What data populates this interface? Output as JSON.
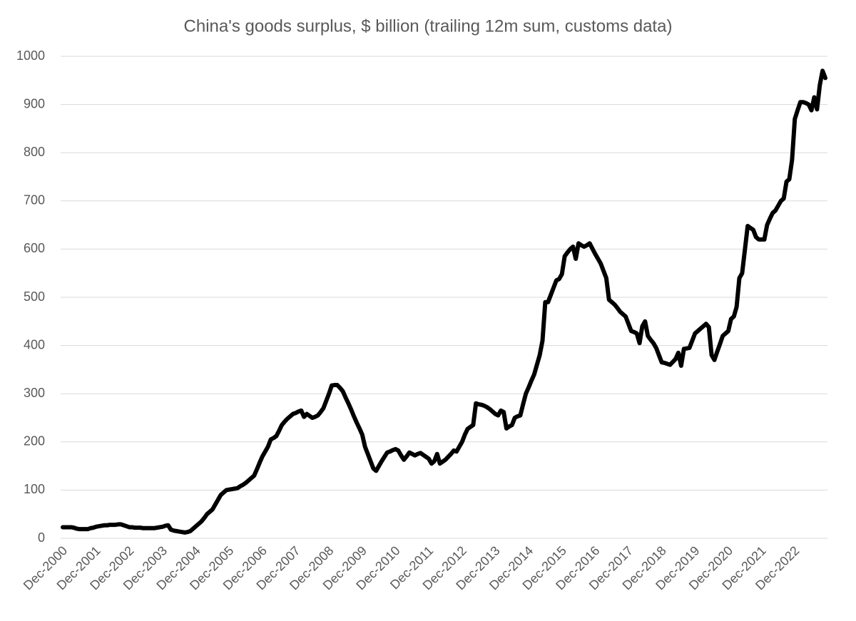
{
  "chart_data": {
    "type": "line",
    "title": "China's goods surplus, $ billion (trailing 12m sum, customs data)",
    "categories": [
      "Dec-2000",
      null,
      null,
      null,
      null,
      null,
      null,
      null,
      null,
      null,
      null,
      null,
      "Dec-2001",
      null,
      null,
      null,
      null,
      null,
      null,
      null,
      null,
      null,
      null,
      null,
      "Dec-2002",
      null,
      null,
      null,
      null,
      null,
      null,
      null,
      null,
      null,
      null,
      null,
      "Dec-2003",
      null,
      null,
      null,
      null,
      null,
      null,
      null,
      null,
      null,
      null,
      null,
      "Dec-2004",
      null,
      null,
      null,
      null,
      null,
      null,
      null,
      null,
      null,
      null,
      null,
      "Dec-2005",
      null,
      null,
      null,
      null,
      null,
      null,
      null,
      null,
      null,
      null,
      null,
      "Dec-2006",
      null,
      null,
      null,
      null,
      null,
      null,
      null,
      null,
      null,
      null,
      null,
      "Dec-2007",
      null,
      null,
      null,
      null,
      null,
      null,
      null,
      null,
      null,
      null,
      null,
      "Dec-2008",
      null,
      null,
      null,
      null,
      null,
      null,
      null,
      null,
      null,
      null,
      null,
      "Dec-2009",
      null,
      null,
      null,
      null,
      null,
      null,
      null,
      null,
      null,
      null,
      null,
      "Dec-2010",
      null,
      null,
      null,
      null,
      null,
      null,
      null,
      null,
      null,
      null,
      null,
      "Dec-2011",
      null,
      null,
      null,
      null,
      null,
      null,
      null,
      null,
      null,
      null,
      null,
      "Dec-2012",
      null,
      null,
      null,
      null,
      null,
      null,
      null,
      null,
      null,
      null,
      null,
      "Dec-2013",
      null,
      null,
      null,
      null,
      null,
      null,
      null,
      null,
      null,
      null,
      null,
      "Dec-2014",
      null,
      null,
      null,
      null,
      null,
      null,
      null,
      null,
      null,
      null,
      null,
      "Dec-2015",
      null,
      null,
      null,
      null,
      null,
      null,
      null,
      null,
      null,
      null,
      null,
      "Dec-2016",
      null,
      null,
      null,
      null,
      null,
      null,
      null,
      null,
      null,
      null,
      null,
      "Dec-2017",
      null,
      null,
      null,
      null,
      null,
      null,
      null,
      null,
      null,
      null,
      null,
      "Dec-2018",
      null,
      null,
      null,
      null,
      null,
      null,
      null,
      null,
      null,
      null,
      null,
      "Dec-2019",
      null,
      null,
      null,
      null,
      null,
      null,
      null,
      null,
      null,
      null,
      null,
      "Dec-2020",
      null,
      null,
      null,
      null,
      null,
      null,
      null,
      null,
      null,
      null,
      null,
      "Dec-2021",
      null,
      null,
      null,
      null,
      null,
      null,
      null,
      null,
      null,
      null,
      null,
      "Dec-2022",
      null,
      null,
      null,
      null,
      null,
      null,
      null,
      null,
      null,
      null,
      null
    ],
    "values": [
      23,
      23,
      23,
      23,
      22,
      20,
      19,
      19,
      19,
      19,
      21,
      22,
      24,
      25,
      26,
      27,
      27,
      28,
      28,
      28,
      29,
      29,
      27,
      25,
      23,
      23,
      22,
      22,
      22,
      21,
      21,
      21,
      21,
      21,
      22,
      23,
      24,
      26,
      27,
      18,
      16,
      15,
      14,
      13,
      12,
      13,
      15,
      20,
      25,
      30,
      35,
      42,
      50,
      55,
      60,
      70,
      80,
      90,
      95,
      100,
      101,
      102,
      103,
      104,
      108,
      111,
      115,
      120,
      125,
      130,
      143,
      157,
      170,
      180,
      190,
      205,
      208,
      212,
      223,
      235,
      242,
      248,
      253,
      258,
      260,
      263,
      265,
      252,
      258,
      254,
      250,
      252,
      255,
      262,
      270,
      285,
      300,
      317,
      318,
      318,
      312,
      305,
      292,
      280,
      267,
      253,
      240,
      228,
      215,
      190,
      175,
      160,
      145,
      140,
      150,
      160,
      169,
      178,
      180,
      183,
      185,
      182,
      172,
      163,
      170,
      178,
      175,
      172,
      175,
      177,
      173,
      169,
      165,
      155,
      160,
      175,
      155,
      159,
      163,
      169,
      175,
      182,
      180,
      190,
      200,
      215,
      227,
      231,
      235,
      280,
      278,
      277,
      275,
      272,
      268,
      263,
      258,
      255,
      265,
      262,
      228,
      232,
      235,
      250,
      253,
      255,
      278,
      300,
      313,
      327,
      340,
      360,
      380,
      410,
      490,
      490,
      505,
      520,
      535,
      538,
      548,
      585,
      593,
      600,
      605,
      580,
      612,
      608,
      605,
      608,
      612,
      601,
      590,
      580,
      570,
      555,
      540,
      495,
      490,
      485,
      478,
      470,
      465,
      460,
      445,
      430,
      428,
      425,
      405,
      440,
      450,
      420,
      412,
      405,
      395,
      380,
      365,
      364,
      362,
      360,
      366,
      372,
      385,
      358,
      393,
      394,
      395,
      410,
      425,
      430,
      435,
      440,
      445,
      438,
      380,
      370,
      387,
      403,
      420,
      425,
      430,
      455,
      460,
      480,
      540,
      550,
      599,
      648,
      644,
      640,
      625,
      620,
      620,
      620,
      650,
      663,
      675,
      680,
      690,
      700,
      705,
      740,
      745,
      785,
      870,
      888,
      905,
      905,
      903,
      900,
      888,
      915,
      890,
      940,
      970,
      955
    ],
    "color": "#000000",
    "ylim": [
      0,
      1000
    ],
    "yticks": [
      0,
      100,
      200,
      300,
      400,
      500,
      600,
      700,
      800,
      900,
      1000
    ],
    "grid": true
  }
}
